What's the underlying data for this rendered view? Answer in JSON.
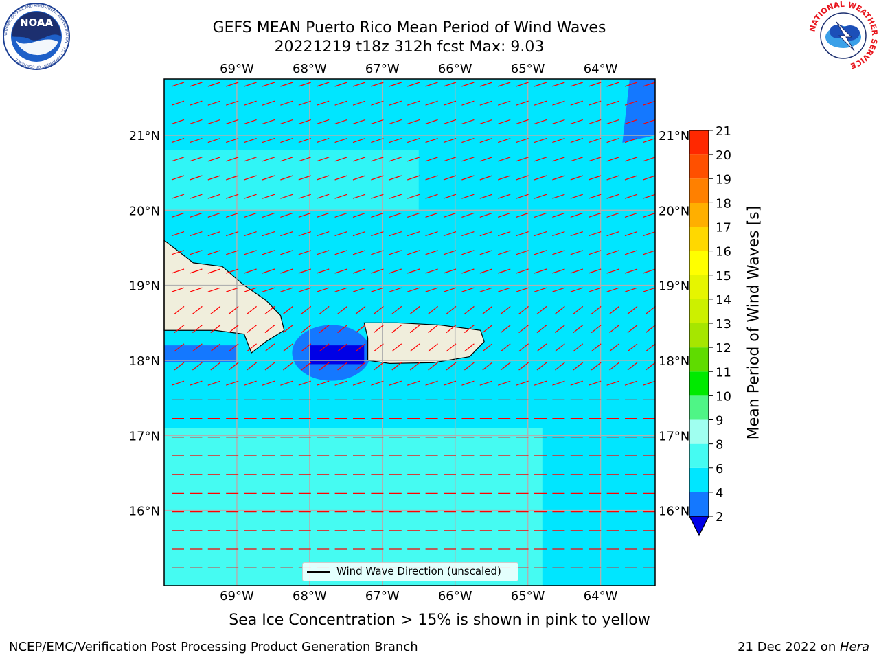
{
  "header": {
    "title_line1": "GEFS MEAN Puerto Rico Mean Period of Wind Waves",
    "title_line2": "20221219 t18z 312h fcst   Max: 9.03"
  },
  "logos": {
    "left": "noaa-logo",
    "right": "national-weather-service-logo",
    "left_text": "NOAA",
    "left_ring_text": "NATIONAL OCEANIC AND ATMOSPHERIC ADMINISTRATION · U.S. DEPARTMENT OF COMMERCE",
    "right_ring_text": "NATIONAL WEATHER SERVICE"
  },
  "map": {
    "lon_ticks": [
      "69°W",
      "68°W",
      "67°W",
      "66°W",
      "65°W",
      "64°W"
    ],
    "lat_ticks": [
      "21°N",
      "20°N",
      "19°N",
      "18°N",
      "17°N",
      "16°N"
    ],
    "lon_values": [
      -69,
      -68,
      -67,
      -66,
      -65,
      -64
    ],
    "lat_values": [
      21,
      20,
      19,
      18,
      17,
      16
    ],
    "extent": {
      "lon_min": -70.0,
      "lon_max": -63.25,
      "lat_min": 15.0,
      "lat_max": 21.75
    },
    "arrow_color": "#ff0000",
    "land_color": "#f0eedc",
    "grid": true
  },
  "legend": {
    "label": "Wind Wave Direction (unscaled)"
  },
  "colorbar": {
    "label": "Mean Period of Wind Waves [s]",
    "ticks": [
      "2",
      "4",
      "6",
      "8",
      "9",
      "10",
      "11",
      "12",
      "13",
      "14",
      "15",
      "16",
      "17",
      "18",
      "19",
      "20",
      "21"
    ],
    "colors": [
      "#1478ff",
      "#00e6ff",
      "#45fbf2",
      "#a0fff0",
      "#4ff586",
      "#00ea00",
      "#5fdc00",
      "#a6e600",
      "#ccf000",
      "#e6f500",
      "#ffff00",
      "#ffd800",
      "#ffaf00",
      "#ff8000",
      "#ff5000",
      "#ff2800"
    ],
    "extend_color": "#0000e6"
  },
  "footer": {
    "note": "Sea Ice Concentration > 15% is shown in pink to yellow",
    "left": "NCEP/EMC/Verification Post Processing Product Generation Branch",
    "right_prefix": "21 Dec 2022 on ",
    "right_host": "Hera"
  }
}
